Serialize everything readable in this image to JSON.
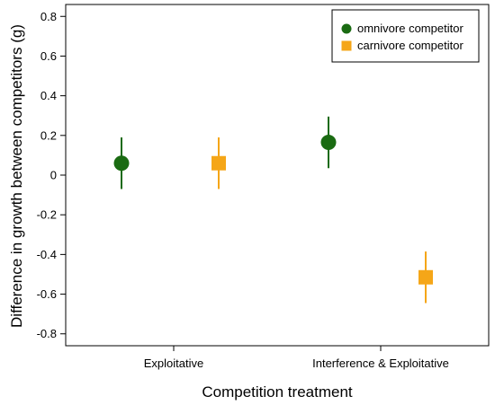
{
  "chart_data": {
    "type": "scatter",
    "xlabel": "Competition treatment",
    "ylabel": "Difference in growth between competitors (g)",
    "categories": [
      "Exploitative",
      "Interference & Exploitative"
    ],
    "ylim": [
      -0.86,
      0.86
    ],
    "yticks": [
      "0.8",
      "0.6",
      "0.4",
      "0.2",
      "0",
      "-0.2",
      "-0.4",
      "-0.6",
      "-0.8"
    ],
    "ytick_values": [
      0.8,
      0.6,
      0.4,
      0.2,
      0,
      -0.2,
      -0.4,
      -0.6,
      -0.8
    ],
    "grid": false,
    "legend_position": "top-right",
    "series": [
      {
        "name": "omnivore competitor",
        "marker": "circle",
        "color": "#1a6b12",
        "values": [
          0.06,
          0.165
        ],
        "lower": [
          -0.07,
          0.035
        ],
        "upper": [
          0.19,
          0.295
        ]
      },
      {
        "name": "carnivore competitor",
        "marker": "square",
        "color": "#f5a618",
        "values": [
          0.06,
          -0.515
        ],
        "lower": [
          -0.07,
          -0.645
        ],
        "upper": [
          0.19,
          -0.385
        ]
      }
    ]
  }
}
